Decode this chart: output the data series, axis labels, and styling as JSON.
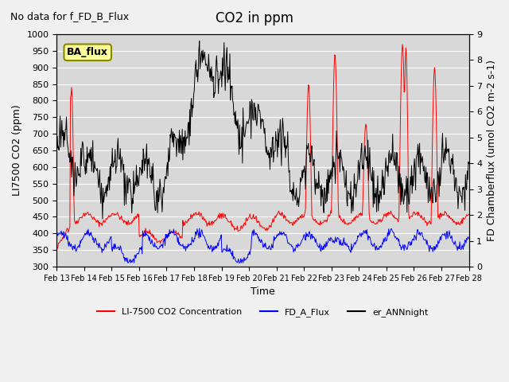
{
  "title": "CO2 in ppm",
  "top_left_text": "No data for f_FD_B_Flux",
  "ba_flux_label": "BA_flux",
  "xlabel": "Time",
  "ylabel_left": "LI7500 CO2 (ppm)",
  "ylabel_right": "FD Chamberflux (umol CO2 m-2 s-1)",
  "ylim_left": [
    300,
    1000
  ],
  "ylim_right": [
    0.0,
    9.0
  ],
  "xlim": [
    0,
    360
  ],
  "left_yticks": [
    300,
    350,
    400,
    450,
    500,
    550,
    600,
    650,
    700,
    750,
    800,
    850,
    900,
    950,
    1000
  ],
  "right_yticks": [
    0.0,
    1.0,
    2.0,
    3.0,
    4.0,
    5.0,
    6.0,
    7.0,
    8.0,
    9.0
  ],
  "xtick_positions": [
    0,
    24,
    48,
    72,
    96,
    120,
    144,
    168,
    192,
    216,
    240,
    264,
    288,
    312,
    336,
    360
  ],
  "xtick_labels": [
    "Feb 13",
    "Feb 14",
    "Feb 15",
    "Feb 16",
    "Feb 17",
    "Feb 18",
    "Feb 19",
    "Feb 20",
    "Feb 21",
    "Feb 22",
    "Feb 23",
    "Feb 24",
    "Feb 25",
    "Feb 26",
    "Feb 27",
    "Feb 28"
  ],
  "plot_bg_color": "#d8d8d8",
  "fig_bg_color": "#f0f0f0",
  "line_red_color": "#ff0000",
  "line_blue_color": "#0000ff",
  "line_black_color": "#000000",
  "legend_labels": [
    "LI-7500 CO2 Concentration",
    "FD_A_Flux",
    "er_ANNnight"
  ],
  "legend_colors": [
    "#ff0000",
    "#0000ff",
    "#000000"
  ],
  "figsize": [
    6.4,
    4.8
  ],
  "dpi": 100,
  "grid_color": "#ffffff",
  "ba_box_facecolor": "#ffff99",
  "ba_box_edgecolor": "#888800"
}
